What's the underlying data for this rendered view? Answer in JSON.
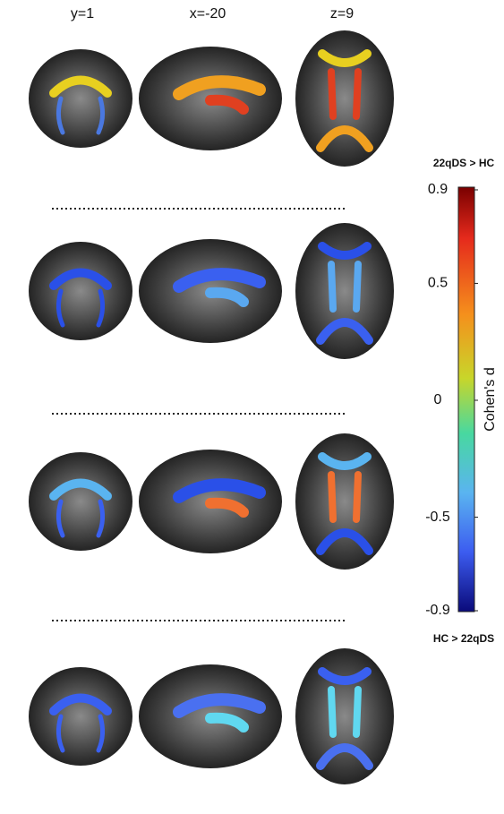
{
  "columns": [
    "y=1",
    "x=-20",
    "z=9"
  ],
  "colorbar": {
    "top_label": "22qDS > HC",
    "bottom_label": "HC > 22qDS",
    "label": "Cohen's d",
    "lim": [
      -0.9,
      0.9
    ],
    "ticks": [
      0.9,
      0.5,
      0,
      -0.5,
      -0.9
    ]
  }
}
